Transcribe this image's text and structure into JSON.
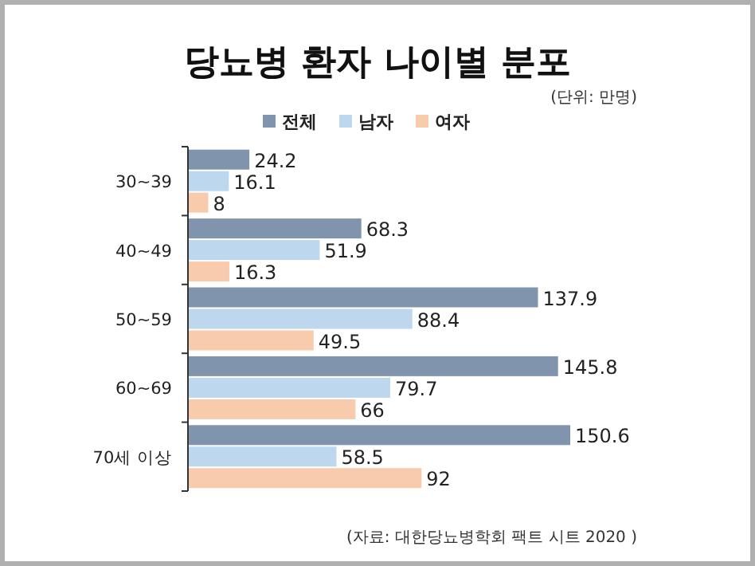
{
  "chart_data": {
    "type": "bar",
    "orientation": "horizontal",
    "title": "당뇨병 환자 나이별 분포",
    "annotations": [
      "(단위: 만명)",
      "(자료: 대한당뇨병학회 팩트 시트 2020 )"
    ],
    "categories": [
      "30~39",
      "40~49",
      "50~59",
      "60~69",
      "70세 이상"
    ],
    "series": [
      {
        "name": "전체",
        "color": "#8194ad",
        "values": [
          24.2,
          68.3,
          137.9,
          145.8,
          150.6
        ]
      },
      {
        "name": "남자",
        "color": "#bdd7ee",
        "values": [
          16.1,
          51.9,
          88.4,
          79.7,
          58.5
        ]
      },
      {
        "name": "여자",
        "color": "#f8cbad",
        "values": [
          8,
          16.3,
          49.5,
          66,
          92
        ]
      }
    ],
    "data_labels": true,
    "legend": "top",
    "grid": false
  }
}
